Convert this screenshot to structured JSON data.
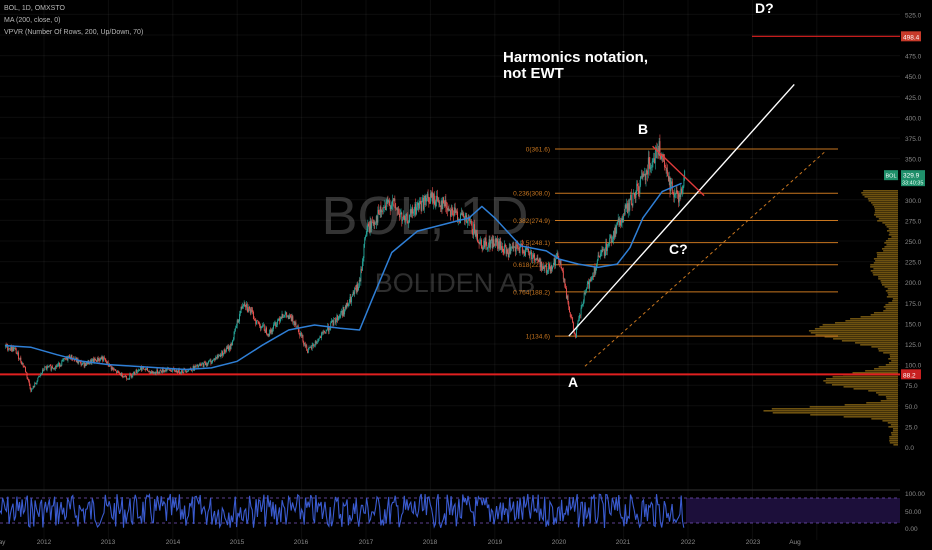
{
  "header": {
    "symbol_line": "BOL, 1D, OMXSTO",
    "ma_line": "MA (200, close, 0)",
    "vpvr_line": "VPVR (Number Of Rows, 200, Up/Down, 70)"
  },
  "watermark": {
    "ticker": "BOL, 1D",
    "company": "BOLIDEN AB"
  },
  "annotations": {
    "note_line1": "Harmonics notation,",
    "note_line2": "not EWT",
    "point_a": "A",
    "point_b": "B",
    "point_c": "C?",
    "point_d": "D?"
  },
  "price_tags": {
    "top_level": "498.4",
    "support_level": "88.2",
    "current_symbol": "BOL",
    "current_price": "329.9",
    "countdown": "33:40:35"
  },
  "colors": {
    "background": "#000000",
    "ma_line": "#2f7fd6",
    "candle_up": "#26a69a",
    "candle_down": "#ef5350",
    "fib_line": "#c8761f",
    "support_line": "#e02020",
    "trend_line": "#ffffff",
    "resistance_line": "#e03a3a",
    "osc_fill": "#3a5bd0",
    "osc_panel": "#1c0f3a",
    "volume_profile": "#c8961e"
  },
  "chart_data": {
    "type": "line",
    "x_tick_labels": [
      "ay",
      "2012",
      "2013",
      "2014",
      "2015",
      "2016",
      "2017",
      "2018",
      "2019",
      "2020",
      "2021",
      "2022",
      "2023",
      "Aug"
    ],
    "y_tick_labels": [
      "525.0",
      "500.0",
      "475.0",
      "450.0",
      "425.0",
      "400.0",
      "375.0",
      "350.0",
      "325.0",
      "300.0",
      "275.0",
      "250.0",
      "225.0",
      "200.0",
      "175.0",
      "150.0",
      "125.0",
      "100.0",
      "75.0",
      "50.0",
      "25.0",
      "0.0"
    ],
    "ylim": [
      0,
      530
    ],
    "osc_tick_labels": [
      "100.00",
      "50.00",
      "0.00"
    ],
    "price_series": {
      "x": [
        2011.4,
        2011.55,
        2011.7,
        2011.8,
        2012.0,
        2012.2,
        2012.4,
        2012.6,
        2012.9,
        2013.1,
        2013.3,
        2013.5,
        2013.7,
        2013.9,
        2014.1,
        2014.3,
        2014.6,
        2014.9,
        2015.1,
        2015.3,
        2015.5,
        2015.7,
        2015.9,
        2016.1,
        2016.3,
        2016.5,
        2016.7,
        2016.9,
        2017.0,
        2017.2,
        2017.4,
        2017.6,
        2017.8,
        2018.0,
        2018.2,
        2018.4,
        2018.6,
        2018.8,
        2019.0,
        2019.2,
        2019.4,
        2019.6,
        2019.8,
        2020.0,
        2020.15,
        2020.25,
        2020.4,
        2020.6,
        2020.8,
        2021.0,
        2021.2,
        2021.4,
        2021.55,
        2021.7,
        2021.85,
        2021.95
      ],
      "close": [
        122,
        118,
        96,
        68,
        95,
        98,
        110,
        100,
        108,
        92,
        84,
        96,
        90,
        94,
        92,
        95,
        104,
        122,
        178,
        152,
        138,
        162,
        152,
        116,
        134,
        152,
        170,
        198,
        262,
        282,
        298,
        272,
        292,
        302,
        296,
        282,
        272,
        246,
        248,
        236,
        242,
        232,
        214,
        232,
        168,
        135,
        186,
        226,
        252,
        282,
        310,
        345,
        362,
        322,
        302,
        328
      ]
    },
    "ma_200": {
      "x": [
        2011.4,
        2011.8,
        2012.2,
        2012.6,
        2013.0,
        2013.4,
        2013.8,
        2014.2,
        2014.6,
        2015.0,
        2015.4,
        2015.8,
        2016.2,
        2016.6,
        2016.9,
        2017.1,
        2017.4,
        2017.8,
        2018.2,
        2018.6,
        2018.8,
        2019.0,
        2019.4,
        2019.8,
        2020.0,
        2020.3,
        2020.6,
        2020.9,
        2021.1,
        2021.3,
        2021.6,
        2021.9
      ],
      "values": [
        123,
        121,
        112,
        104,
        100,
        98,
        96,
        94,
        96,
        104,
        124,
        142,
        148,
        144,
        142,
        180,
        236,
        262,
        270,
        278,
        292,
        278,
        244,
        238,
        228,
        222,
        218,
        222,
        242,
        278,
        310,
        320
      ]
    },
    "fibonacci": [
      {
        "label": "0(361.6)",
        "value": 361.6
      },
      {
        "label": "0.236(308.0)",
        "value": 308.0
      },
      {
        "label": "0.382(274.9)",
        "value": 274.9
      },
      {
        "label": "0.5(248.1)",
        "value": 248.1
      },
      {
        "label": "0.618(221.2)",
        "value": 221.2
      },
      {
        "label": "0.764(188.2)",
        "value": 188.2
      },
      {
        "label": "1(134.6)",
        "value": 134.6
      }
    ],
    "horizontal_levels": [
      88.2,
      498.4
    ],
    "trend_line": {
      "from": [
        2020.15,
        134.6
      ],
      "to": [
        2023.65,
        440
      ]
    },
    "dashed_line": {
      "from": [
        2020.4,
        98
      ],
      "to": [
        2024.15,
        360
      ]
    },
    "resistance_line": {
      "from": [
        2021.45,
        365
      ],
      "to": [
        2022.25,
        305
      ]
    }
  }
}
